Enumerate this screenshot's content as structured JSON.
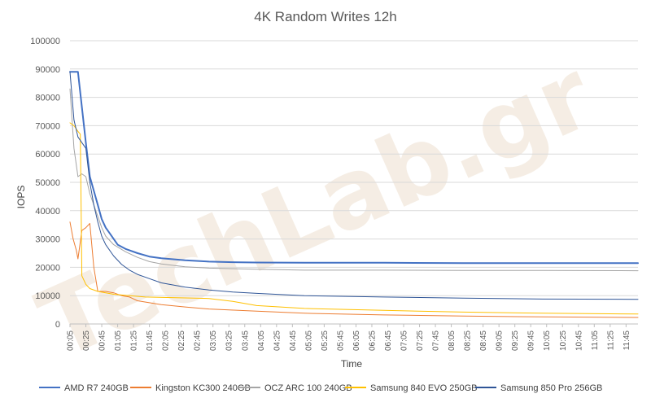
{
  "chart_data": {
    "type": "line",
    "title": "4K Random Writes 12h",
    "xlabel": "Time",
    "ylabel": "IOPS",
    "ylim": [
      0,
      100000
    ],
    "y_ticks": [
      "0",
      "10000",
      "20000",
      "30000",
      "40000",
      "50000",
      "60000",
      "70000",
      "80000",
      "90000",
      "100000"
    ],
    "x_ticks": [
      "00:05",
      "00:25",
      "00:45",
      "01:05",
      "01:25",
      "01:45",
      "02:05",
      "02:25",
      "02:45",
      "03:05",
      "03:25",
      "03:45",
      "04:05",
      "04:25",
      "04:45",
      "05:05",
      "05:25",
      "05:45",
      "06:05",
      "06:25",
      "06:45",
      "07:05",
      "07:25",
      "07:45",
      "08:05",
      "08:25",
      "08:45",
      "09:05",
      "09:25",
      "09:45",
      "10:05",
      "10:25",
      "10:45",
      "11:05",
      "11:25",
      "11:45"
    ],
    "x_unit": "minutes",
    "x_range": [
      5,
      720
    ],
    "grid": true,
    "legend_position": "bottom",
    "watermark": "TechLab.gr",
    "series": [
      {
        "name": "AMD R7 240GB",
        "color": "#4472c4",
        "width": 2,
        "points": [
          [
            5,
            89000
          ],
          [
            15,
            89000
          ],
          [
            25,
            64000
          ],
          [
            30,
            52000
          ],
          [
            35,
            47000
          ],
          [
            40,
            42000
          ],
          [
            45,
            37000
          ],
          [
            50,
            34000
          ],
          [
            55,
            32000
          ],
          [
            60,
            30000
          ],
          [
            65,
            28000
          ],
          [
            75,
            26500
          ],
          [
            90,
            25000
          ],
          [
            105,
            23800
          ],
          [
            120,
            23200
          ],
          [
            150,
            22500
          ],
          [
            180,
            22000
          ],
          [
            210,
            21800
          ],
          [
            240,
            21700
          ],
          [
            300,
            21600
          ],
          [
            400,
            21600
          ],
          [
            500,
            21500
          ],
          [
            600,
            21500
          ],
          [
            720,
            21500
          ]
        ]
      },
      {
        "name": "Kingston KC300 240GB",
        "color": "#ed7d31",
        "width": 1,
        "points": [
          [
            5,
            36000
          ],
          [
            9,
            30000
          ],
          [
            13,
            26000
          ],
          [
            15,
            23000
          ],
          [
            20,
            33000
          ],
          [
            25,
            34000
          ],
          [
            30,
            35500
          ],
          [
            35,
            20000
          ],
          [
            40,
            11500
          ],
          [
            50,
            11500
          ],
          [
            60,
            11000
          ],
          [
            70,
            10000
          ],
          [
            80,
            9500
          ],
          [
            90,
            8200
          ],
          [
            105,
            7500
          ],
          [
            120,
            6800
          ],
          [
            150,
            6000
          ],
          [
            180,
            5300
          ],
          [
            240,
            4500
          ],
          [
            300,
            3800
          ],
          [
            400,
            3200
          ],
          [
            500,
            2800
          ],
          [
            600,
            2500
          ],
          [
            720,
            2300
          ]
        ]
      },
      {
        "name": "OCZ ARC 100 240GB",
        "color": "#a5a5a5",
        "width": 1,
        "points": [
          [
            5,
            83000
          ],
          [
            10,
            62000
          ],
          [
            15,
            52000
          ],
          [
            20,
            53000
          ],
          [
            25,
            52000
          ],
          [
            30,
            46000
          ],
          [
            35,
            42000
          ],
          [
            40,
            38000
          ],
          [
            45,
            34000
          ],
          [
            50,
            31000
          ],
          [
            60,
            28000
          ],
          [
            75,
            25500
          ],
          [
            90,
            23500
          ],
          [
            105,
            22000
          ],
          [
            120,
            21200
          ],
          [
            150,
            20200
          ],
          [
            180,
            19700
          ],
          [
            240,
            19300
          ],
          [
            300,
            19000
          ],
          [
            400,
            19000
          ],
          [
            500,
            18900
          ],
          [
            600,
            18900
          ],
          [
            720,
            18800
          ]
        ]
      },
      {
        "name": "Samsung 840 EVO 250GB",
        "color": "#ffc000",
        "width": 1,
        "points": [
          [
            5,
            71000
          ],
          [
            10,
            70000
          ],
          [
            15,
            68000
          ],
          [
            18,
            67000
          ],
          [
            20,
            17000
          ],
          [
            25,
            14000
          ],
          [
            30,
            12500
          ],
          [
            40,
            11500
          ],
          [
            50,
            11000
          ],
          [
            60,
            10500
          ],
          [
            80,
            10000
          ],
          [
            100,
            9500
          ],
          [
            150,
            9200
          ],
          [
            180,
            9000
          ],
          [
            210,
            8000
          ],
          [
            240,
            6500
          ],
          [
            300,
            5500
          ],
          [
            400,
            4800
          ],
          [
            500,
            4200
          ],
          [
            600,
            3800
          ],
          [
            720,
            3500
          ]
        ]
      },
      {
        "name": "Samsung 850 Pro 256GB",
        "color": "#2f5597",
        "width": 1,
        "points": [
          [
            5,
            89000
          ],
          [
            10,
            72000
          ],
          [
            15,
            66000
          ],
          [
            25,
            62000
          ],
          [
            30,
            50000
          ],
          [
            35,
            42000
          ],
          [
            40,
            36000
          ],
          [
            45,
            31000
          ],
          [
            50,
            28000
          ],
          [
            60,
            24000
          ],
          [
            70,
            21000
          ],
          [
            80,
            19000
          ],
          [
            90,
            17500
          ],
          [
            105,
            16000
          ],
          [
            120,
            14500
          ],
          [
            150,
            13000
          ],
          [
            180,
            12000
          ],
          [
            210,
            11300
          ],
          [
            240,
            10800
          ],
          [
            300,
            10000
          ],
          [
            400,
            9500
          ],
          [
            500,
            9100
          ],
          [
            600,
            8800
          ],
          [
            720,
            8700
          ]
        ]
      }
    ]
  }
}
